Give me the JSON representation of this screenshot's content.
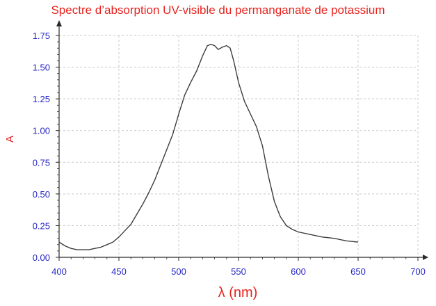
{
  "chart_data": {
    "type": "line",
    "title": "Spectre d’absorption UV-visible du permanganate de potassium",
    "xlabel": "λ (nm)",
    "ylabel": "A",
    "xlim": [
      400,
      700
    ],
    "ylim": [
      0,
      1.75
    ],
    "xticks": [
      "400",
      "450",
      "500",
      "550",
      "600",
      "650",
      "700"
    ],
    "yticks": [
      "0.00",
      "0.25",
      "0.50",
      "0.75",
      "1.00",
      "1.25",
      "1.50",
      "1.75"
    ],
    "grid": true,
    "series": [
      {
        "x": [
          400,
          405,
          410,
          415,
          420,
          425,
          430,
          435,
          440,
          445,
          450,
          455,
          460,
          465,
          470,
          475,
          480,
          485,
          490,
          495,
          500,
          505,
          510,
          515,
          520,
          524,
          527,
          530,
          533,
          537,
          540,
          543,
          546,
          550,
          555,
          560,
          565,
          570,
          575,
          580,
          585,
          590,
          595,
          600,
          610,
          620,
          630,
          640,
          650
        ],
        "y": [
          0.12,
          0.09,
          0.07,
          0.06,
          0.06,
          0.06,
          0.07,
          0.08,
          0.1,
          0.12,
          0.16,
          0.21,
          0.26,
          0.34,
          0.42,
          0.51,
          0.61,
          0.73,
          0.85,
          0.97,
          1.13,
          1.28,
          1.38,
          1.47,
          1.59,
          1.67,
          1.68,
          1.67,
          1.64,
          1.66,
          1.67,
          1.65,
          1.55,
          1.38,
          1.23,
          1.13,
          1.03,
          0.88,
          0.64,
          0.44,
          0.32,
          0.25,
          0.22,
          0.2,
          0.18,
          0.16,
          0.15,
          0.13,
          0.12
        ]
      }
    ],
    "colors": {
      "line": "#3c3c3c",
      "title": "#e8231e",
      "ticks": "#2424c8",
      "grid": "#c8c8c8",
      "axis": "#2a2a2a"
    }
  }
}
